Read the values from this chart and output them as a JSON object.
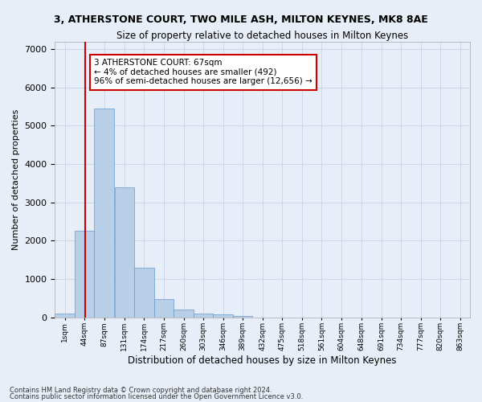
{
  "title": "3, ATHERSTONE COURT, TWO MILE ASH, MILTON KEYNES, MK8 8AE",
  "subtitle": "Size of property relative to detached houses in Milton Keynes",
  "xlabel": "Distribution of detached houses by size in Milton Keynes",
  "ylabel": "Number of detached properties",
  "footnote1": "Contains HM Land Registry data © Crown copyright and database right 2024.",
  "footnote2": "Contains public sector information licensed under the Open Government Licence v3.0.",
  "bin_labels": [
    "1sqm",
    "44sqm",
    "87sqm",
    "131sqm",
    "174sqm",
    "217sqm",
    "260sqm",
    "303sqm",
    "346sqm",
    "389sqm",
    "432sqm",
    "475sqm",
    "518sqm",
    "561sqm",
    "604sqm",
    "648sqm",
    "691sqm",
    "734sqm",
    "777sqm",
    "820sqm",
    "863sqm"
  ],
  "bar_values": [
    90,
    2250,
    5450,
    3400,
    1300,
    480,
    200,
    100,
    70,
    30,
    0,
    0,
    0,
    0,
    0,
    0,
    0,
    0,
    0,
    0
  ],
  "bar_color": "#b8cfe8",
  "bar_edgecolor": "#6699cc",
  "grid_color": "#ccd6e8",
  "background_color": "#e8eef8",
  "marker_x": 67,
  "marker_line_color": "#cc0000",
  "annotation_text": "3 ATHERSTONE COURT: 67sqm\n← 4% of detached houses are smaller (492)\n96% of semi-detached houses are larger (12,656) →",
  "annotation_box_color": "#cc0000",
  "ylim": [
    0,
    7200
  ],
  "yticks": [
    0,
    1000,
    2000,
    3000,
    4000,
    5000,
    6000,
    7000
  ],
  "bin_starts": [
    1,
    44,
    87,
    131,
    174,
    217,
    260,
    303,
    346,
    389,
    432,
    475,
    518,
    561,
    604,
    648,
    691,
    734,
    777,
    820
  ],
  "bin_width": 43,
  "xlim_min": 1,
  "xlim_max": 906
}
